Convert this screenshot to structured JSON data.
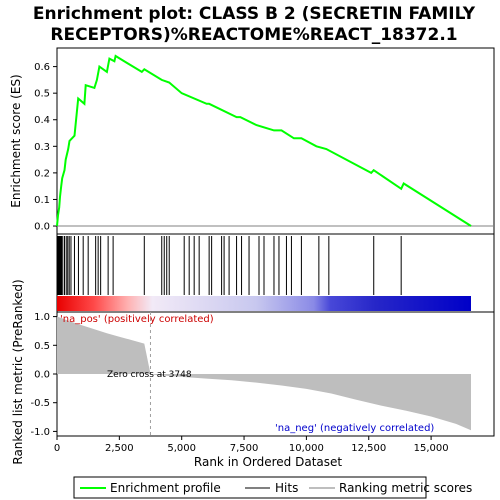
{
  "title_line1": "Enrichment plot: CLASS B 2 (SECRETIN FAMILY",
  "title_line2": "RECEPTORS)%REACTOME%REACT_18372.1",
  "colors": {
    "es_line": "#00ff00",
    "hits": "#000000",
    "metric_fill": "#bebebe",
    "annot_pos": "#cc0000",
    "annot_neg": "#0000cc"
  },
  "chart_data": [
    {
      "type": "line",
      "name": "enrichment-profile",
      "ylabel": "Enrichment score (ES)",
      "xlim": [
        0,
        16700
      ],
      "ylim": [
        -0.03,
        0.67
      ],
      "yticks": [
        "0.0",
        "0.1",
        "0.2",
        "0.3",
        "0.4",
        "0.5",
        "0.6"
      ],
      "ytick_values": [
        0.0,
        0.1,
        0.2,
        0.3,
        0.4,
        0.5,
        0.6
      ],
      "points": [
        [
          0,
          0.0
        ],
        [
          40,
          0.04
        ],
        [
          90,
          0.07
        ],
        [
          120,
          0.11
        ],
        [
          170,
          0.15
        ],
        [
          210,
          0.18
        ],
        [
          300,
          0.21
        ],
        [
          350,
          0.25
        ],
        [
          450,
          0.29
        ],
        [
          500,
          0.32
        ],
        [
          700,
          0.34
        ],
        [
          850,
          0.48
        ],
        [
          1100,
          0.46
        ],
        [
          1150,
          0.53
        ],
        [
          1500,
          0.52
        ],
        [
          1600,
          0.55
        ],
        [
          1700,
          0.6
        ],
        [
          2000,
          0.58
        ],
        [
          2100,
          0.63
        ],
        [
          2300,
          0.62
        ],
        [
          2350,
          0.64
        ],
        [
          3400,
          0.58
        ],
        [
          3500,
          0.59
        ],
        [
          4200,
          0.55
        ],
        [
          4500,
          0.54
        ],
        [
          5000,
          0.5
        ],
        [
          6000,
          0.46
        ],
        [
          6100,
          0.46
        ],
        [
          7200,
          0.41
        ],
        [
          7350,
          0.41
        ],
        [
          8000,
          0.38
        ],
        [
          8700,
          0.36
        ],
        [
          9000,
          0.36
        ],
        [
          9500,
          0.33
        ],
        [
          9800,
          0.33
        ],
        [
          10400,
          0.3
        ],
        [
          10800,
          0.29
        ],
        [
          12600,
          0.2
        ],
        [
          12700,
          0.21
        ],
        [
          13800,
          0.14
        ],
        [
          13900,
          0.16
        ],
        [
          16600,
          0.0
        ]
      ]
    },
    {
      "type": "scatter",
      "name": "hits",
      "x": [
        20,
        60,
        100,
        140,
        180,
        230,
        300,
        370,
        430,
        490,
        560,
        700,
        860,
        1050,
        1250,
        1550,
        1650,
        1750,
        2050,
        2250,
        3500,
        4200,
        4300,
        4400,
        4500,
        5100,
        5300,
        5500,
        5700,
        6100,
        6200,
        6600,
        6700,
        6900,
        7200,
        7400,
        7700,
        8100,
        8300,
        8700,
        8900,
        9200,
        9400,
        9800,
        10500,
        10900,
        12700,
        13800
      ]
    },
    {
      "type": "area",
      "name": "ranked-list-metric",
      "xlabel": "Rank in Ordered Dataset",
      "ylabel": "Ranked list metric (PreRanked)",
      "ylim": [
        -1.08,
        1.08
      ],
      "yticks": [
        "1.0",
        "0.5",
        "0.0",
        "-0.5",
        "-1.0"
      ],
      "ytick_values": [
        1.0,
        0.5,
        0.0,
        -0.5,
        -1.0
      ],
      "xticks": [
        "0",
        "2,500",
        "5,000",
        "7,500",
        "10,000",
        "12,500",
        "15,000"
      ],
      "xtick_values": [
        0,
        2500,
        5000,
        7500,
        10000,
        12500,
        15000
      ],
      "x": [
        0,
        200,
        500,
        1000,
        1500,
        2000,
        2500,
        3000,
        3500,
        3748,
        4000,
        5000,
        6000,
        7000,
        8000,
        9000,
        10000,
        11000,
        12000,
        13000,
        14000,
        15000,
        16000,
        16600
      ],
      "values": [
        1.0,
        0.97,
        0.92,
        0.85,
        0.78,
        0.71,
        0.65,
        0.59,
        0.53,
        0.0,
        -0.02,
        -0.05,
        -0.08,
        -0.11,
        -0.15,
        -0.2,
        -0.26,
        -0.34,
        -0.45,
        -0.55,
        -0.64,
        -0.74,
        -0.87,
        -0.98
      ]
    }
  ],
  "annotations": {
    "pos_label": "'na_pos' (positively correlated)",
    "neg_label": "'na_neg' (negatively correlated)",
    "zero_cross": "Zero cross at 3748",
    "zero_cross_value": 3748
  },
  "legend": {
    "items": [
      "Enrichment profile",
      "Hits",
      "Ranking metric scores"
    ]
  }
}
